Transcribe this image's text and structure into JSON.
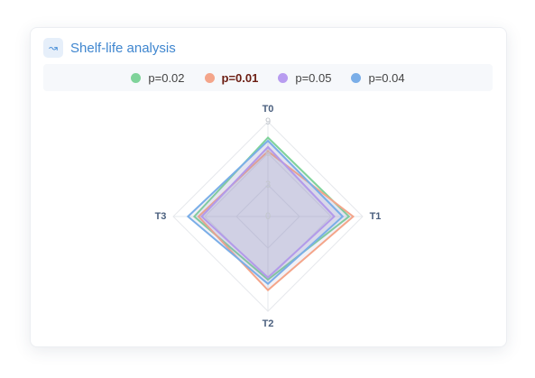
{
  "chart_data": {
    "type": "radar",
    "title": "Shelf-life analysis",
    "categories": [
      "T0",
      "T1",
      "T2",
      "T3"
    ],
    "series": [
      {
        "name": "p=0.02",
        "color": "#7fd39a",
        "values": [
          7.5,
          7.7,
          6.0,
          7.0
        ]
      },
      {
        "name": "p=0.01",
        "color": "#f4a58a",
        "values": [
          6.2,
          8.1,
          7.0,
          6.6
        ]
      },
      {
        "name": "p=0.05",
        "color": "#b89cf0",
        "values": [
          6.6,
          6.3,
          5.8,
          6.3
        ]
      },
      {
        "name": "p=0.04",
        "color": "#7aaee8",
        "values": [
          7.2,
          7.1,
          6.4,
          7.6
        ]
      }
    ],
    "legend_highlight": 1,
    "rlim": [
      0,
      9
    ],
    "rticks": [
      0,
      3,
      6,
      9
    ],
    "grid": true
  }
}
